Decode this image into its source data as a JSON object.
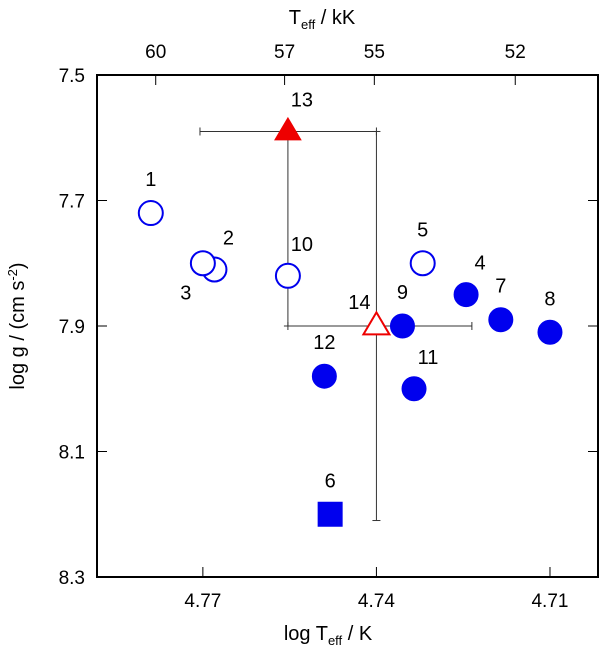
{
  "chart_data": {
    "type": "scatter",
    "x_axis": {
      "label_main": "log T",
      "label_sub": "eff",
      "label_unit": " / K",
      "reversed": true,
      "range": [
        4.7883,
        4.7017
      ],
      "ticks": [
        4.77,
        4.74,
        4.71
      ],
      "tick_labels": [
        "4.77",
        "4.74",
        "4.71"
      ]
    },
    "x2_axis": {
      "label_main": "T",
      "label_sub": "eff",
      "label_unit": "  / kK",
      "ticks": [
        60,
        57,
        55,
        52
      ],
      "tick_labels": [
        "60",
        "57",
        "55",
        "52"
      ]
    },
    "y_axis": {
      "label_main": "log g / (cm s",
      "label_sup": "-2",
      "label_close": ")",
      "reversed": true,
      "range": [
        7.5,
        8.3
      ],
      "ticks": [
        7.5,
        7.7,
        7.9,
        8.1,
        8.3
      ],
      "tick_labels": [
        "7.5",
        "7.7",
        "7.9",
        "8.1",
        "8.3"
      ]
    },
    "colors": {
      "blue": "#0000ee",
      "red": "#ee0000"
    },
    "points": [
      {
        "label": "1",
        "x": 4.779,
        "y": 7.72,
        "marker": "circle-open",
        "color": "#0000ee",
        "label_pos": "above"
      },
      {
        "label": "2",
        "x": 4.768,
        "y": 7.81,
        "marker": "circle-open",
        "color": "#0000ee",
        "label_pos": "above-right"
      },
      {
        "label": "3",
        "x": 4.77,
        "y": 7.8,
        "marker": "circle-open",
        "color": "#0000ee",
        "label_pos": "below-left"
      },
      {
        "label": "10",
        "x": 4.7553,
        "y": 7.82,
        "marker": "circle-open",
        "color": "#0000ee",
        "label_pos": "above-right"
      },
      {
        "label": "5",
        "x": 4.732,
        "y": 7.8,
        "marker": "circle-open",
        "color": "#0000ee",
        "label_pos": "above"
      },
      {
        "label": "4",
        "x": 4.7245,
        "y": 7.85,
        "marker": "circle-filled",
        "color": "#0000ee",
        "label_pos": "above-right"
      },
      {
        "label": "7",
        "x": 4.7185,
        "y": 7.89,
        "marker": "circle-filled",
        "color": "#0000ee",
        "label_pos": "above"
      },
      {
        "label": "8",
        "x": 4.71,
        "y": 7.91,
        "marker": "circle-filled",
        "color": "#0000ee",
        "label_pos": "above"
      },
      {
        "label": "9",
        "x": 4.7355,
        "y": 7.9,
        "marker": "circle-filled",
        "color": "#0000ee",
        "label_pos": "above"
      },
      {
        "label": "11",
        "x": 4.7335,
        "y": 8.0,
        "marker": "circle-filled",
        "color": "#0000ee",
        "label_pos": "above-right"
      },
      {
        "label": "12",
        "x": 4.749,
        "y": 7.98,
        "marker": "circle-filled",
        "color": "#0000ee",
        "label_pos": "above"
      },
      {
        "label": "6",
        "x": 4.748,
        "y": 8.2,
        "marker": "square-filled",
        "color": "#0000ee",
        "label_pos": "above"
      },
      {
        "label": "13",
        "x": 4.7553,
        "y": 7.59,
        "marker": "triangle-filled",
        "color": "#ee0000",
        "label_pos": "above-right",
        "err_x": [
          4.7705,
          4.74
        ],
        "err_y": [
          7.59,
          7.9
        ]
      },
      {
        "label": "14",
        "x": 4.74,
        "y": 7.9,
        "marker": "triangle-open",
        "color": "#ee0000",
        "label_pos": "above-left",
        "err_x": [
          4.7553,
          4.7235
        ],
        "err_y": [
          7.59,
          8.21
        ]
      }
    ]
  }
}
